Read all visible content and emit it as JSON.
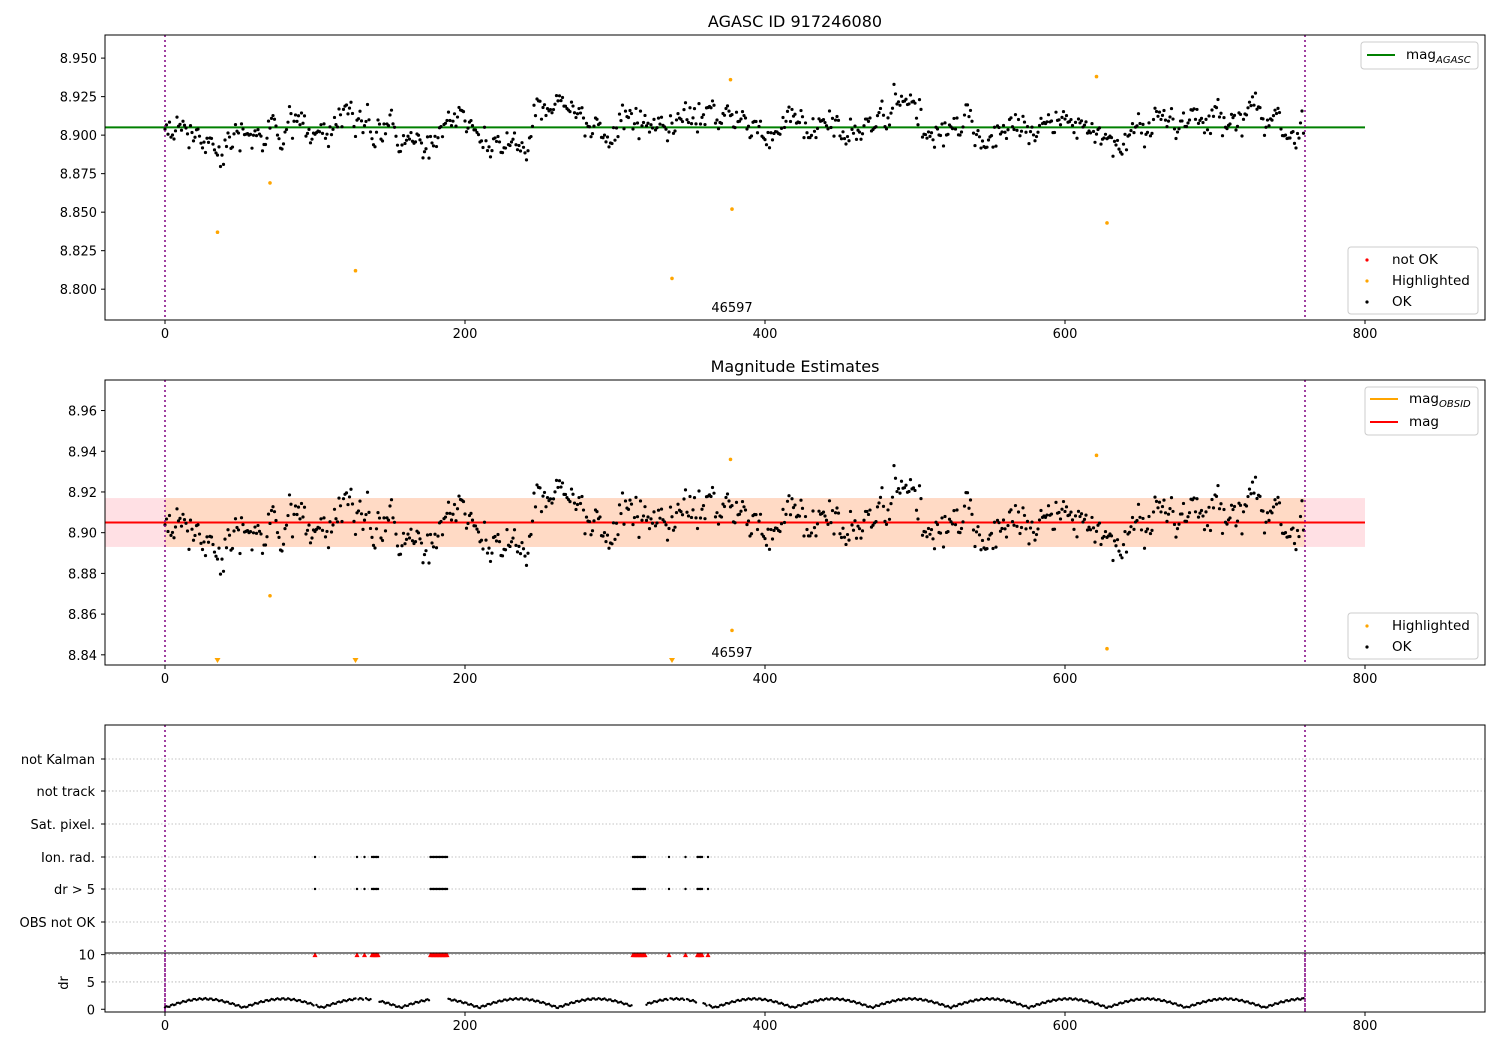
{
  "chart_data": [
    {
      "id": "top",
      "type": "scatter",
      "title": "AGASC ID 917246080",
      "annotation": "46597",
      "xlim": [
        -40,
        880
      ],
      "ylim": [
        8.78,
        8.965
      ],
      "xticks": [
        "0",
        "200",
        "400",
        "600",
        "800"
      ],
      "yticks": [
        "8.800",
        "8.825",
        "8.850",
        "8.875",
        "8.900",
        "8.925",
        "8.950"
      ],
      "vlines": [
        0,
        760
      ],
      "hline": {
        "label": "mag",
        "subscript": "AGASC",
        "value": 8.905,
        "x_end": 800,
        "color": "#008000"
      },
      "legend_top": [
        {
          "label": "mag",
          "subscript": "AGASC",
          "color": "#008000"
        }
      ],
      "legend_bottom": [
        {
          "label": "not OK",
          "color": "#ff0000"
        },
        {
          "label": "Highlighted",
          "color": "#ffa500"
        },
        {
          "label": "OK",
          "color": "#000000"
        }
      ],
      "highlighted": [
        [
          35,
          8.837
        ],
        [
          70,
          8.869
        ],
        [
          127,
          8.812
        ],
        [
          338,
          8.807
        ],
        [
          377,
          8.936
        ],
        [
          378,
          8.852
        ],
        [
          621,
          8.938
        ],
        [
          628,
          8.843
        ]
      ],
      "ok_series": {
        "n": 760,
        "mean": 8.905,
        "noise": 0.009,
        "note": "760 OK points, values approx. between 8.873 and 8.935"
      }
    },
    {
      "id": "mid",
      "type": "scatter",
      "title": "Magnitude Estimates",
      "annotation": "46597",
      "xlim": [
        -40,
        880
      ],
      "ylim": [
        8.835,
        8.975
      ],
      "xticks": [
        "0",
        "200",
        "400",
        "600",
        "800"
      ],
      "yticks": [
        "8.84",
        "8.86",
        "8.88",
        "8.90",
        "8.92",
        "8.94",
        "8.96"
      ],
      "vlines": [
        0,
        760
      ],
      "band_outer": {
        "low": 8.893,
        "high": 8.917,
        "x_end": 800,
        "color": "#ffe0e4"
      },
      "band_inner": {
        "low": 8.893,
        "high": 8.917,
        "x_end": 760,
        "color": "#ffdac5"
      },
      "lines": [
        {
          "label": "mag",
          "subscript": "OBSID",
          "value": 8.905,
          "color": "#ffa500"
        },
        {
          "label": "mag",
          "subscript": "",
          "value": 8.905,
          "color": "#ff0000"
        }
      ],
      "legend_bottom": [
        {
          "label": "Highlighted",
          "color": "#ffa500"
        },
        {
          "label": "OK",
          "color": "#000000"
        }
      ],
      "highlighted": [
        [
          70,
          8.869
        ],
        [
          377,
          8.936
        ],
        [
          378,
          8.852
        ],
        [
          621,
          8.938
        ],
        [
          628,
          8.843
        ]
      ],
      "below_range_markers": [
        35,
        127,
        338
      ]
    },
    {
      "id": "flags",
      "type": "scatter",
      "xlim": [
        -40,
        880
      ],
      "categories": [
        "not Kalman",
        "not track",
        "Sat. pixel.",
        "Ion. rad.",
        "dr > 5",
        "OBS not OK"
      ],
      "vlines": [
        0,
        760
      ],
      "flag_x": [
        100,
        128,
        133,
        138,
        139,
        140,
        141,
        142,
        177,
        178,
        179,
        180,
        181,
        182,
        183,
        184,
        185,
        186,
        187,
        188,
        312,
        313,
        314,
        315,
        316,
        317,
        318,
        319,
        320,
        336,
        347,
        355,
        356,
        357,
        358,
        362
      ],
      "flagged_rows": [
        "Ion. rad.",
        "dr > 5"
      ]
    },
    {
      "id": "dr",
      "type": "scatter",
      "ylabel": "dr",
      "xlim": [
        -40,
        880
      ],
      "ylim": [
        -0.5,
        10.3
      ],
      "xticks": [
        "0",
        "200",
        "400",
        "600",
        "800"
      ],
      "yticks": [
        "0",
        "5",
        "10"
      ],
      "vlines": [
        0,
        760
      ],
      "capped_value": 10,
      "capped_color": "#ff0000"
    }
  ]
}
